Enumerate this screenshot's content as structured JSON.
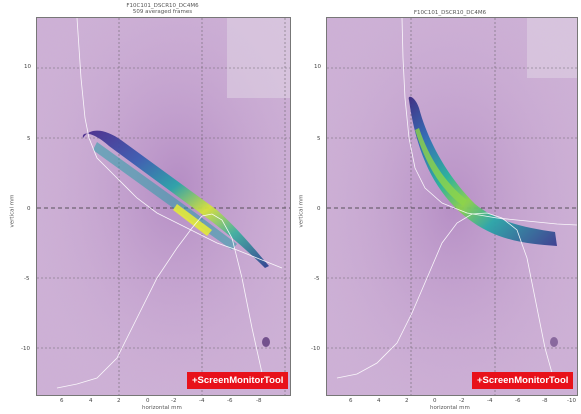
{
  "left": {
    "title_line1": "F10C101_DSCR10_DC4M6",
    "title_line2": "509 averaged frames",
    "ylabel": "vertical mm",
    "xlabel": "horizontal mm",
    "yticks": [
      "10",
      "5",
      "0",
      "-5",
      "-10"
    ],
    "xticks": [
      "6",
      "4",
      "2",
      "0",
      "-2",
      "-4",
      "-6",
      "-8"
    ],
    "badge": "+ScreenMonitorTool"
  },
  "right": {
    "title_line1": "F10C101_DSCR10_DC4M6",
    "ylabel": "vertical mm",
    "xlabel": "horizontal mm",
    "yticks": [
      "10",
      "5",
      "0",
      "-5",
      "-10"
    ],
    "xticks": [
      "6",
      "4",
      "2",
      "0",
      "-2",
      "-4",
      "-6",
      "-8",
      "-10"
    ],
    "badge": "+ScreenMonitorTool"
  },
  "colors": {
    "background_purple": "#c9a8d3",
    "grid": "#555555",
    "badge": "#e8111a"
  }
}
